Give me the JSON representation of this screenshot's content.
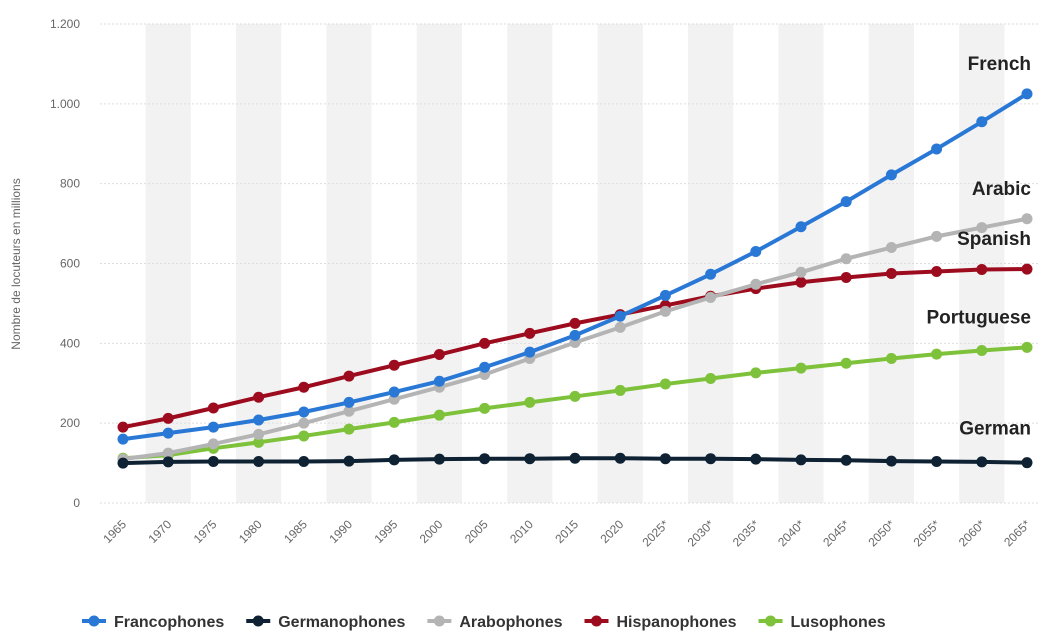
{
  "chart_data": {
    "type": "line",
    "y_label": "Nombre de locuteurs en millions",
    "categories": [
      "1965",
      "1970",
      "1975",
      "1980",
      "1985",
      "1990",
      "1995",
      "2000",
      "2005",
      "2010",
      "2015",
      "2020",
      "2025*",
      "2030*",
      "2035*",
      "2040*",
      "2045*",
      "2050*",
      "2055*",
      "2060*",
      "2065*"
    ],
    "series": [
      {
        "name": "Francophones",
        "color": "#2a78d6",
        "values": [
          160,
          175,
          190,
          208,
          228,
          252,
          278,
          305,
          340,
          378,
          420,
          468,
          520,
          573,
          630,
          692,
          755,
          822,
          887,
          955,
          1025
        ]
      },
      {
        "name": "Germanophones",
        "color": "#0e2233",
        "values": [
          100,
          103,
          104,
          104,
          104,
          105,
          108,
          110,
          111,
          111,
          112,
          112,
          111,
          111,
          110,
          108,
          107,
          105,
          104,
          103,
          101
        ]
      },
      {
        "name": "Arabophones",
        "color": "#b4b4b4",
        "values": [
          110,
          125,
          148,
          172,
          200,
          230,
          260,
          290,
          322,
          362,
          402,
          440,
          480,
          515,
          548,
          578,
          612,
          640,
          668,
          690,
          712
        ]
      },
      {
        "name": "Hispanophones",
        "color": "#9c0c1e",
        "values": [
          190,
          212,
          238,
          265,
          290,
          318,
          345,
          372,
          400,
          425,
          450,
          472,
          495,
          518,
          537,
          553,
          565,
          575,
          580,
          585,
          586
        ]
      },
      {
        "name": "Lusophones",
        "color": "#7dc23a",
        "values": [
          112,
          120,
          137,
          152,
          168,
          185,
          202,
          220,
          237,
          252,
          267,
          282,
          298,
          312,
          326,
          338,
          350,
          362,
          373,
          382,
          390
        ]
      }
    ],
    "annotations": [
      "French",
      "Arabic",
      "Spanish",
      "Portuguese",
      "German"
    ],
    "ylim": [
      0,
      1200
    ],
    "yticks": [
      0,
      200,
      400,
      600,
      800,
      {
        "value": 1000,
        "label": "1.000"
      },
      {
        "value": 1200,
        "label": "1.200"
      }
    ],
    "grid": true,
    "legend": "bottom"
  }
}
